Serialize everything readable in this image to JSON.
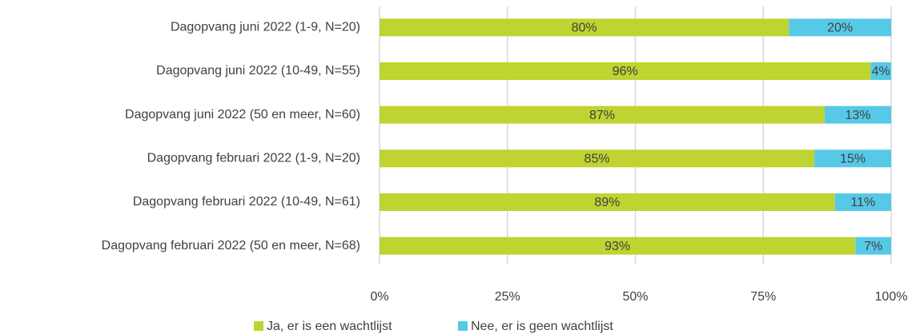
{
  "chart_data": {
    "type": "bar",
    "orientation": "horizontal",
    "stacked": true,
    "categories": [
      "Dagopvang juni 2022 (1-9, N=20)",
      "Dagopvang juni 2022 (10-49, N=55)",
      "Dagopvang juni 2022 (50 en meer, N=60)",
      "Dagopvang februari 2022 (1-9, N=20)",
      "Dagopvang februari 2022 (10-49, N=61)",
      "Dagopvang februari 2022 (50 en meer, N=68)"
    ],
    "series": [
      {
        "name": "Ja, er is een wachtlijst",
        "color": "#bfd331",
        "values": [
          80,
          96,
          87,
          85,
          89,
          93
        ],
        "value_labels": [
          "80%",
          "96%",
          "87%",
          "85%",
          "89%",
          "93%"
        ]
      },
      {
        "name": "Nee, er is geen wachtlijst",
        "color": "#56c9e7",
        "values": [
          20,
          4,
          13,
          15,
          11,
          7
        ],
        "value_labels": [
          "20%",
          "4%",
          "13%",
          "15%",
          "11%",
          "7%"
        ]
      }
    ],
    "xlim": [
      0,
      100
    ],
    "xticks": [
      {
        "value": 0,
        "label": "0%"
      },
      {
        "value": 25,
        "label": "25%"
      },
      {
        "value": 50,
        "label": "50%"
      },
      {
        "value": 75,
        "label": "75%"
      },
      {
        "value": 100,
        "label": "100%"
      }
    ],
    "grid": true,
    "legend": "bottom"
  }
}
